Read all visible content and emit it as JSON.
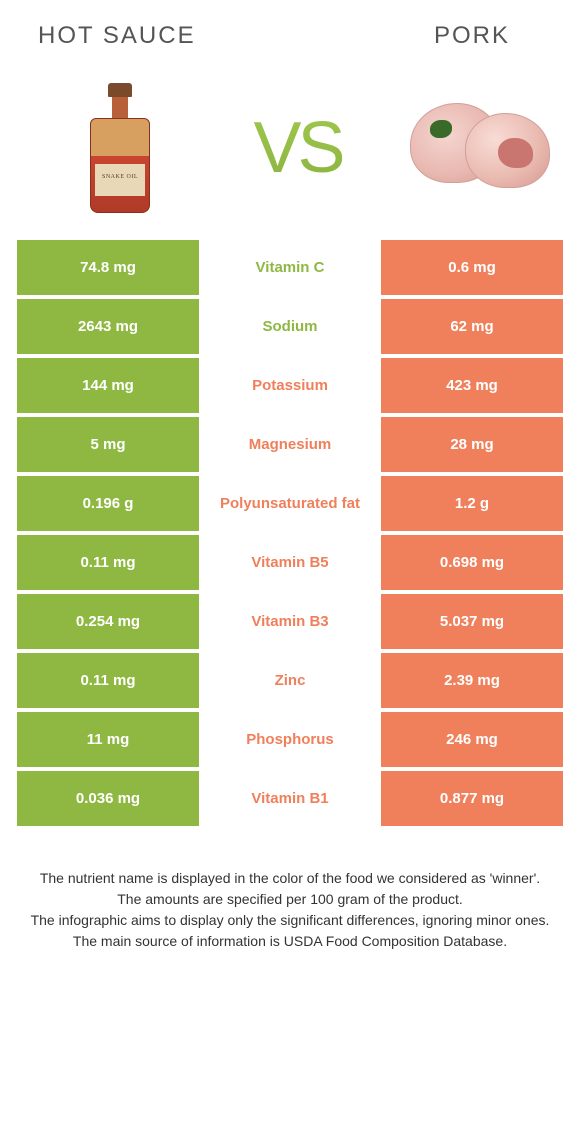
{
  "food_left": {
    "title": "Hot sauce",
    "label_text": "SNAKE OIL"
  },
  "food_right": {
    "title": "Pork"
  },
  "vs_text": "VS",
  "colors": {
    "left_cell": "#8fb843",
    "right_cell": "#ef805b",
    "mid_green": "#8fb843",
    "mid_orange": "#ef805b",
    "title_text": "#555555",
    "background": "#ffffff"
  },
  "nutrients": [
    {
      "left": "74.8 mg",
      "name": "Vitamin C",
      "right": "0.6 mg",
      "winner": "left"
    },
    {
      "left": "2643 mg",
      "name": "Sodium",
      "right": "62 mg",
      "winner": "left"
    },
    {
      "left": "144 mg",
      "name": "Potassium",
      "right": "423 mg",
      "winner": "right"
    },
    {
      "left": "5 mg",
      "name": "Magnesium",
      "right": "28 mg",
      "winner": "right"
    },
    {
      "left": "0.196 g",
      "name": "Polyunsaturated fat",
      "right": "1.2 g",
      "winner": "right"
    },
    {
      "left": "0.11 mg",
      "name": "Vitamin B5",
      "right": "0.698 mg",
      "winner": "right"
    },
    {
      "left": "0.254 mg",
      "name": "Vitamin B3",
      "right": "5.037 mg",
      "winner": "right"
    },
    {
      "left": "0.11 mg",
      "name": "Zinc",
      "right": "2.39 mg",
      "winner": "right"
    },
    {
      "left": "11 mg",
      "name": "Phosphorus",
      "right": "246 mg",
      "winner": "right"
    },
    {
      "left": "0.036 mg",
      "name": "Vitamin B1",
      "right": "0.877 mg",
      "winner": "right"
    }
  ],
  "footnotes": [
    "The nutrient name is displayed in the color of the food we considered as 'winner'.",
    "The amounts are specified per 100 gram of the product.",
    "The infographic aims to display only the significant differences, ignoring minor ones.",
    "The main source of information is USDA Food Composition Database."
  ]
}
